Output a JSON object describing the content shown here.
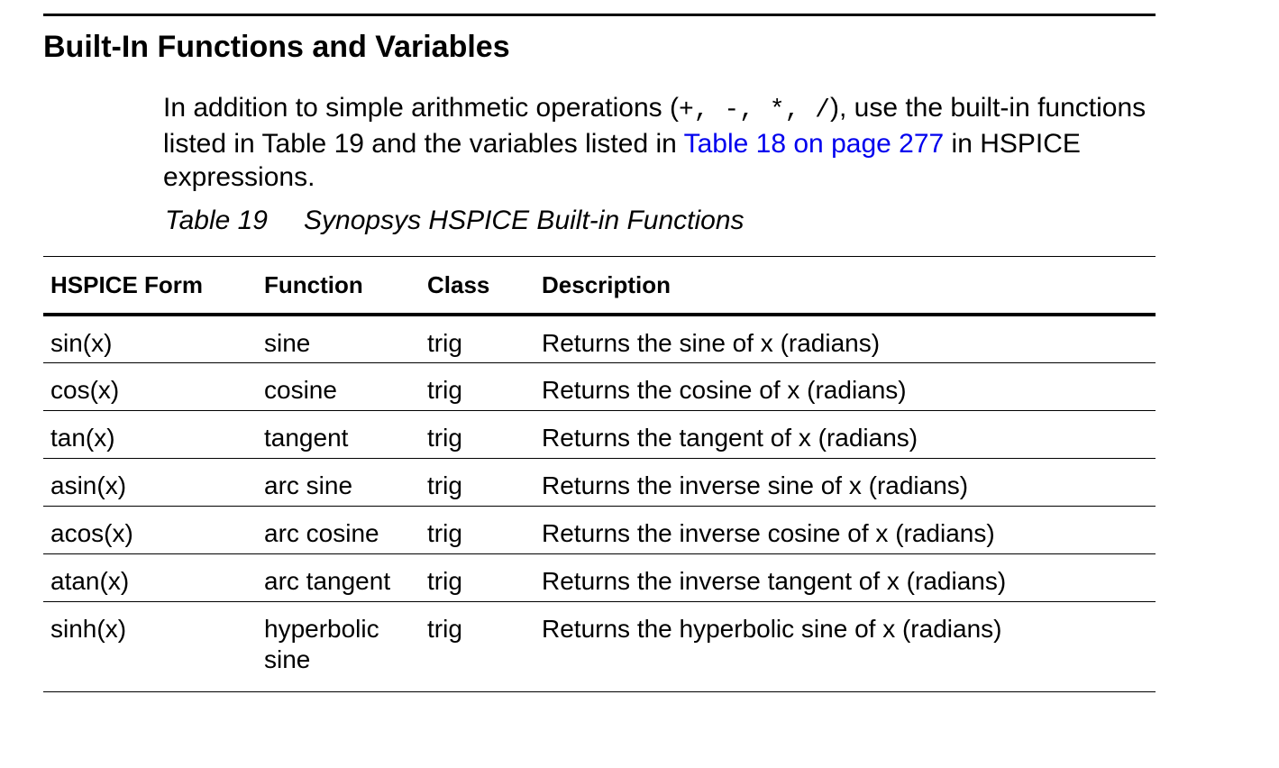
{
  "section": {
    "title": "Built-In Functions and Variables"
  },
  "intro": {
    "part1": "In addition to simple arithmetic operations (",
    "ops": "+, -, *, /",
    "part2": "), use the built-in functions listed in Table 19 and the variables listed in ",
    "link_text": "Table 18 on page 277",
    "part3": " in HSPICE expressions."
  },
  "caption": {
    "label": "Table 19",
    "title": "Synopsys HSPICE Built-in Functions"
  },
  "table": {
    "headers": [
      "HSPICE Form",
      "Function",
      "Class",
      "Description"
    ],
    "rows": [
      [
        "sin(x)",
        "sine",
        "trig",
        "Returns the sine of x (radians)"
      ],
      [
        "cos(x)",
        "cosine",
        "trig",
        "Returns the cosine of x (radians)"
      ],
      [
        "tan(x)",
        "tangent",
        "trig",
        "Returns the tangent of x (radians)"
      ],
      [
        "asin(x)",
        "arc sine",
        "trig",
        "Returns the inverse sine of x (radians)"
      ],
      [
        "acos(x)",
        "arc cosine",
        "trig",
        "Returns the inverse cosine of x (radians)"
      ],
      [
        "atan(x)",
        "arc tangent",
        "trig",
        "Returns the inverse tangent of x (radians)"
      ],
      [
        "sinh(x)",
        "hyperbolic sine",
        "trig",
        "Returns the hyperbolic sine of x (radians)"
      ]
    ]
  },
  "colors": {
    "text": "#000000",
    "link": "#0000ee",
    "background": "#ffffff"
  }
}
